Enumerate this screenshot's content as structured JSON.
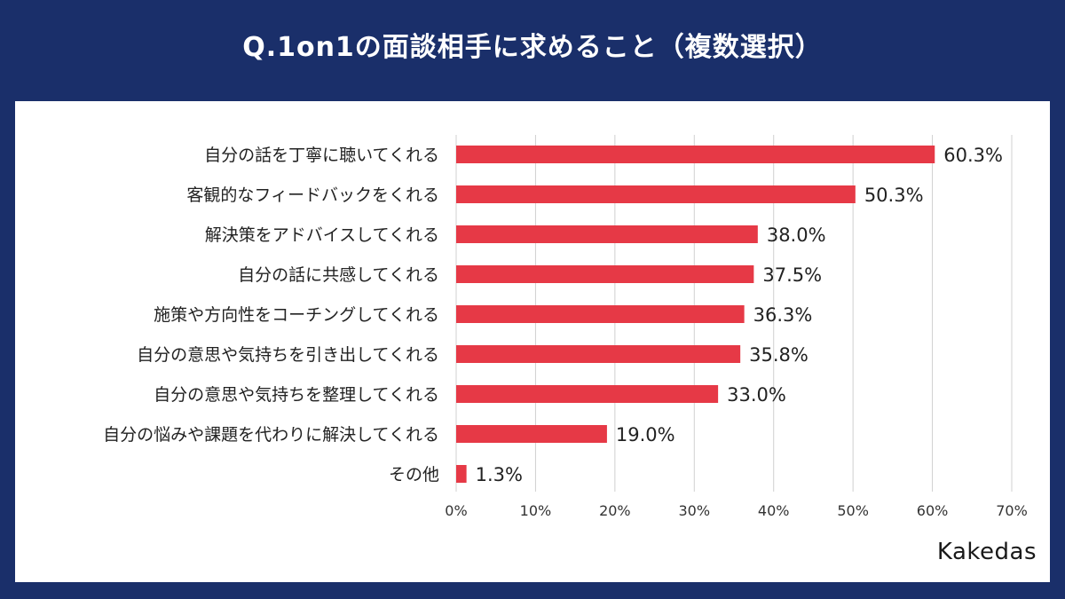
{
  "page": {
    "title": "Q.1on1の面談相手に求めること（複数選択）",
    "logo": "Kakedas"
  },
  "colors": {
    "background": "#1a2f6a",
    "bar": "#e63946",
    "gridline": "#d0d0d0",
    "panel": "#ffffff"
  },
  "chart_data": {
    "type": "bar",
    "orientation": "horizontal",
    "title": "Q.1on1の面談相手に求めること（複数選択）",
    "categories": [
      "自分の話を丁寧に聴いてくれる",
      "客観的なフィードバックをくれる",
      "解決策をアドバイスしてくれる",
      "自分の話に共感してくれる",
      "施策や方向性をコーチングしてくれる",
      "自分の意思や気持ちを引き出してくれる",
      "自分の意思や気持ちを整理してくれる",
      "自分の悩みや課題を代わりに解決してくれる",
      "その他"
    ],
    "values": [
      60.3,
      50.3,
      38.0,
      37.5,
      36.3,
      35.8,
      33.0,
      19.0,
      1.3
    ],
    "value_labels": [
      "60.3%",
      "50.3%",
      "38.0%",
      "37.5%",
      "36.3%",
      "35.8%",
      "33.0%",
      "19.0%",
      "1.3%"
    ],
    "xlim": [
      0,
      70
    ],
    "xticks": [
      0,
      10,
      20,
      30,
      40,
      50,
      60,
      70
    ],
    "xtick_labels": [
      "0%",
      "10%",
      "20%",
      "30%",
      "40%",
      "50%",
      "60%",
      "70%"
    ],
    "grid": true,
    "xlabel": "",
    "ylabel": ""
  }
}
